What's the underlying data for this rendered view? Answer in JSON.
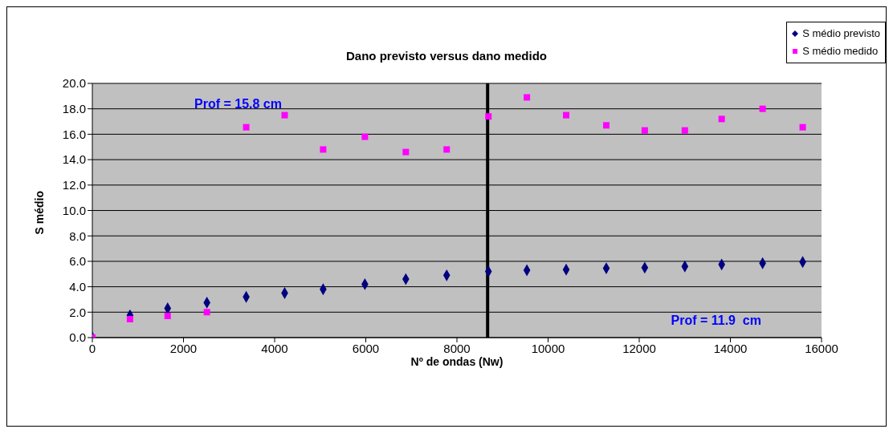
{
  "chart_data": {
    "type": "scatter",
    "title": "Dano previsto versus dano medido",
    "xlabel": "Nº de ondas (Nw)",
    "ylabel": "S médio",
    "x": [
      0,
      826,
      1652,
      2514,
      3376,
      4220,
      5064,
      5980,
      6878,
      7775,
      8691,
      9535,
      10397,
      11277,
      12121,
      13001,
      13809,
      14707,
      15587
    ],
    "series": [
      {
        "name": "S médio previsto",
        "color": "#000080",
        "marker": "diamond",
        "values": [
          0,
          1.75,
          2.3,
          2.75,
          3.2,
          3.5,
          3.8,
          4.2,
          4.6,
          4.9,
          5.2,
          5.3,
          5.35,
          5.45,
          5.5,
          5.6,
          5.75,
          5.85,
          5.95
        ]
      },
      {
        "name": "S médio medido",
        "color": "#ff00ff",
        "marker": "square",
        "values": [
          0,
          1.45,
          1.7,
          2.0,
          16.55,
          17.5,
          14.8,
          15.8,
          14.6,
          14.8,
          17.4,
          18.9,
          17.5,
          16.7,
          16.3,
          16.3,
          17.2,
          18.0,
          16.55
        ]
      }
    ],
    "xlim": [
      0,
      16000
    ],
    "xticks": [
      0,
      2000,
      4000,
      6000,
      8000,
      10000,
      12000,
      14000,
      16000
    ],
    "ylim": [
      0,
      20
    ],
    "yticks": [
      {
        "value": 0,
        "label": "0.0"
      },
      {
        "value": 2,
        "label": "2.0"
      },
      {
        "value": 4,
        "label": "4.0"
      },
      {
        "value": 6,
        "label": "6.0"
      },
      {
        "value": 8,
        "label": "8.0"
      },
      {
        "value": 10,
        "label": "10.0"
      },
      {
        "value": 12,
        "label": "12.0"
      },
      {
        "value": 14,
        "label": "14.0"
      },
      {
        "value": 16,
        "label": "16.0"
      },
      {
        "value": 18,
        "label": "18.0"
      },
      {
        "value": 20,
        "label": "20.0"
      }
    ],
    "grid": "y",
    "legend": "top right",
    "ref_lines": [
      {
        "axis": "x",
        "value": 8673,
        "color": "#000000"
      }
    ],
    "annotations": [
      "Prof = 15.8 cm",
      "Prof = 11.9  cm"
    ]
  }
}
